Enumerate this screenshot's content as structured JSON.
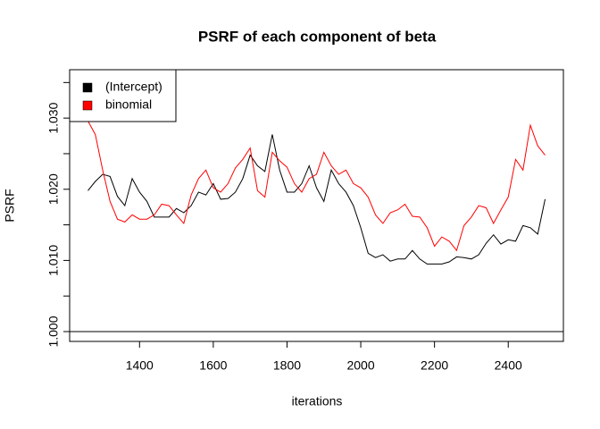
{
  "chart_data": {
    "type": "line",
    "title": "PSRF of each component of beta",
    "x_label": "iterations",
    "y_label": "PSRF",
    "x": [
      1260,
      1280,
      1300,
      1320,
      1340,
      1360,
      1380,
      1400,
      1420,
      1440,
      1460,
      1480,
      1500,
      1520,
      1540,
      1560,
      1580,
      1600,
      1620,
      1640,
      1660,
      1680,
      1700,
      1720,
      1740,
      1760,
      1780,
      1800,
      1820,
      1840,
      1860,
      1880,
      1900,
      1920,
      1940,
      1960,
      1980,
      2000,
      2020,
      2040,
      2060,
      2080,
      2100,
      2120,
      2140,
      2160,
      2180,
      2200,
      2220,
      2240,
      2260,
      2280,
      2300,
      2320,
      2340,
      2360,
      2380,
      2400,
      2420,
      2440,
      2460,
      2480,
      2500
    ],
    "series": [
      {
        "name": "(Intercept)",
        "color": "#000000",
        "values": [
          1.0198,
          1.0211,
          1.0221,
          1.0218,
          1.019,
          1.0177,
          1.0215,
          1.0196,
          1.0183,
          1.0161,
          1.0161,
          1.0161,
          1.0173,
          1.0167,
          1.0177,
          1.0196,
          1.0192,
          1.0208,
          1.0186,
          1.0187,
          1.0196,
          1.0215,
          1.0248,
          1.0233,
          1.0225,
          1.0277,
          1.0227,
          1.0196,
          1.0196,
          1.0208,
          1.0233,
          1.0202,
          1.0183,
          1.0227,
          1.0208,
          1.0196,
          1.0177,
          1.0146,
          1.011,
          1.0104,
          1.0108,
          1.0099,
          1.0102,
          1.0102,
          1.0114,
          1.0102,
          1.0095,
          1.0095,
          1.0095,
          1.0098,
          1.0105,
          1.0104,
          1.0102,
          1.0108,
          1.0124,
          1.0136,
          1.0123,
          1.0129,
          1.0127,
          1.0149,
          1.0146,
          1.0137,
          1.0186
        ]
      },
      {
        "name": "binomial",
        "color": "#ff0000",
        "values": [
          1.0296,
          1.0277,
          1.0227,
          1.0183,
          1.0158,
          1.0154,
          1.0164,
          1.0158,
          1.0158,
          1.0164,
          1.0179,
          1.0177,
          1.0164,
          1.0152,
          1.0192,
          1.0215,
          1.0227,
          1.0202,
          1.0196,
          1.0208,
          1.023,
          1.0242,
          1.0258,
          1.0198,
          1.0189,
          1.0252,
          1.024,
          1.0231,
          1.0208,
          1.0196,
          1.0215,
          1.0221,
          1.0252,
          1.0233,
          1.0221,
          1.0227,
          1.0208,
          1.0202,
          1.0189,
          1.0164,
          1.0152,
          1.0167,
          1.0171,
          1.0179,
          1.0162,
          1.0161,
          1.0146,
          1.012,
          1.0133,
          1.0127,
          1.0114,
          1.0149,
          1.0161,
          1.0177,
          1.0174,
          1.0152,
          1.0171,
          1.0189,
          1.0242,
          1.0227,
          1.029,
          1.0261,
          1.0248
        ]
      }
    ],
    "xlim": [
      1210.4,
      2549.6
    ],
    "ylim": [
      0.99862,
      1.0368
    ],
    "xticks": [
      1400,
      1600,
      1800,
      2000,
      2200,
      2400
    ],
    "yticks": [
      {
        "value": 1,
        "label": "1.000"
      },
      {
        "value": 1.01,
        "label": "1.010"
      },
      {
        "value": 1.02,
        "label": "1.020"
      },
      {
        "value": 1.03,
        "label": "1.030"
      }
    ],
    "yminorticks": [
      1.005,
      1.015,
      1.025,
      1.035
    ],
    "hline": 1,
    "legend": "top-left"
  }
}
